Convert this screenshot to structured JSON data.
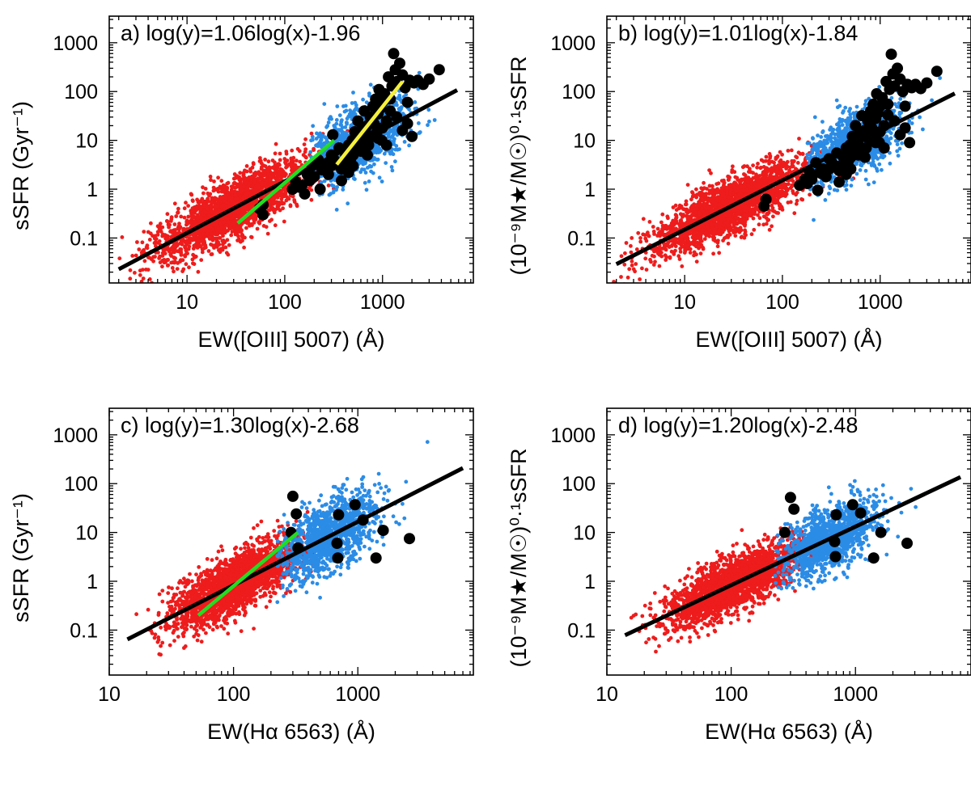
{
  "colors": {
    "red_points": "#ee1c1c",
    "blue_points": "#2b8ce6",
    "black_points": "#000000",
    "fit_line": "#000000",
    "green_line": "#22dd22",
    "yellow_line": "#f5f03c"
  },
  "chart_data": [
    {
      "type": "scatter",
      "panel": "a",
      "title": "a) log(y)=1.06log(x)-1.96",
      "xlabel": "EW([OIII] 5007) (Å)",
      "ylabel": "sSFR (Gyr⁻¹)",
      "xscale": "log",
      "yscale": "log",
      "xlim": [
        1.6,
        8500
      ],
      "ylim": [
        0.012,
        3500
      ],
      "xticks": [
        10,
        100,
        1000
      ],
      "xtick_labels": [
        "10",
        "100",
        "1000"
      ],
      "yticks": [
        0.1,
        1,
        10,
        100,
        1000
      ],
      "ytick_labels": [
        "0.1",
        "1",
        "10",
        "100",
        "1000"
      ],
      "fit": {
        "slope": 1.06,
        "intercept": -1.96,
        "x_range": [
          2,
          5800
        ]
      },
      "green_line": {
        "x": [
          33,
          320
        ],
        "y": [
          0.2,
          10
        ]
      },
      "yellow_line": {
        "x": [
          340,
          1600
        ],
        "y": [
          3.2,
          160
        ]
      },
      "red_cloud": {
        "n": 2200,
        "xlog_center": 1.45,
        "xlog_sd": 0.38,
        "xlog_min": 0.25,
        "xlog_max": 2.75,
        "ylog_scatter": 0.3
      },
      "blue_cloud": {
        "n": 1200,
        "xlog_center": 2.72,
        "xlog_sd": 0.26,
        "xlog_min": 2.25,
        "xlog_max": 3.7,
        "ylog_scatter": 0.34
      },
      "black_points": [
        [
          55,
          0.4
        ],
        [
          60,
          0.48
        ],
        [
          60,
          0.3
        ],
        [
          130,
          1.4
        ],
        [
          150,
          1.2
        ],
        [
          170,
          2
        ],
        [
          190,
          3
        ],
        [
          200,
          1.8
        ],
        [
          220,
          4
        ],
        [
          240,
          2.5
        ],
        [
          260,
          3.2
        ],
        [
          280,
          2
        ],
        [
          300,
          5
        ],
        [
          310,
          13
        ],
        [
          320,
          4
        ],
        [
          350,
          3.5
        ],
        [
          360,
          7
        ],
        [
          380,
          2.6
        ],
        [
          400,
          3.5
        ],
        [
          420,
          5
        ],
        [
          440,
          6
        ],
        [
          450,
          8
        ],
        [
          470,
          4
        ],
        [
          490,
          10
        ],
        [
          500,
          5
        ],
        [
          520,
          15
        ],
        [
          540,
          7
        ],
        [
          560,
          25
        ],
        [
          580,
          12
        ],
        [
          600,
          9
        ],
        [
          620,
          18
        ],
        [
          650,
          40
        ],
        [
          680,
          14
        ],
        [
          700,
          20
        ],
        [
          720,
          8
        ],
        [
          750,
          30
        ],
        [
          780,
          12
        ],
        [
          800,
          50
        ],
        [
          820,
          22
        ],
        [
          850,
          70
        ],
        [
          880,
          15
        ],
        [
          900,
          35
        ],
        [
          920,
          110
        ],
        [
          950,
          45
        ],
        [
          980,
          10
        ],
        [
          1000,
          60
        ],
        [
          1050,
          90
        ],
        [
          1100,
          25
        ],
        [
          1150,
          200
        ],
        [
          1200,
          70
        ],
        [
          1250,
          130
        ],
        [
          1300,
          600
        ],
        [
          1350,
          280
        ],
        [
          1400,
          160
        ],
        [
          1500,
          380
        ],
        [
          1600,
          220
        ],
        [
          1700,
          120
        ],
        [
          1800,
          60
        ],
        [
          1900,
          170
        ],
        [
          2000,
          12
        ],
        [
          2100,
          150
        ],
        [
          2300,
          170
        ],
        [
          2600,
          140
        ],
        [
          3000,
          180
        ],
        [
          3800,
          280
        ],
        [
          800,
          12
        ],
        [
          700,
          5
        ],
        [
          600,
          6
        ],
        [
          500,
          3
        ],
        [
          450,
          2.2
        ],
        [
          380,
          1.5
        ],
        [
          300,
          3
        ],
        [
          250,
          2.5
        ],
        [
          230,
          1
        ],
        [
          180,
          1.5
        ],
        [
          160,
          0.8
        ],
        [
          140,
          1.1
        ],
        [
          120,
          1
        ],
        [
          1100,
          8
        ],
        [
          1000,
          18
        ],
        [
          900,
          11
        ],
        [
          1200,
          40
        ],
        [
          1400,
          30
        ],
        [
          1600,
          16
        ],
        [
          1800,
          22
        ]
      ]
    },
    {
      "type": "scatter",
      "panel": "b",
      "title": "b) log(y)=1.01log(x)-1.84",
      "xlabel": "EW([OIII] 5007) (Å)",
      "ylabel": "(10⁻⁹M★/M☉)⁰·¹sSFR",
      "xscale": "log",
      "yscale": "log",
      "xlim": [
        1.6,
        8500
      ],
      "ylim": [
        0.012,
        3500
      ],
      "xticks": [
        10,
        100,
        1000
      ],
      "xtick_labels": [
        "10",
        "100",
        "1000"
      ],
      "yticks": [
        0.1,
        1,
        10,
        100,
        1000
      ],
      "ytick_labels": [
        "0.1",
        "1",
        "10",
        "100",
        "1000"
      ],
      "fit": {
        "slope": 1.01,
        "intercept": -1.84,
        "x_range": [
          2,
          5800
        ]
      },
      "red_cloud": {
        "n": 2200,
        "xlog_center": 1.45,
        "xlog_sd": 0.38,
        "xlog_min": 0.25,
        "xlog_max": 2.75,
        "ylog_scatter": 0.28
      },
      "blue_cloud": {
        "n": 1200,
        "xlog_center": 2.72,
        "xlog_sd": 0.26,
        "xlog_min": 2.25,
        "xlog_max": 3.7,
        "ylog_scatter": 0.32
      },
      "black_points": [
        [
          65,
          0.45
        ],
        [
          68,
          0.62
        ],
        [
          150,
          1.2
        ],
        [
          170,
          1.6
        ],
        [
          190,
          2.2
        ],
        [
          200,
          1.6
        ],
        [
          220,
          3.5
        ],
        [
          240,
          2.2
        ],
        [
          260,
          2.6
        ],
        [
          280,
          1.8
        ],
        [
          300,
          4.2
        ],
        [
          320,
          3.5
        ],
        [
          350,
          3
        ],
        [
          360,
          5.5
        ],
        [
          380,
          2.4
        ],
        [
          400,
          3
        ],
        [
          420,
          4.5
        ],
        [
          440,
          5
        ],
        [
          450,
          7
        ],
        [
          470,
          3.6
        ],
        [
          490,
          8
        ],
        [
          500,
          4.5
        ],
        [
          520,
          12
        ],
        [
          540,
          6
        ],
        [
          560,
          20
        ],
        [
          580,
          10
        ],
        [
          600,
          8
        ],
        [
          620,
          15
        ],
        [
          650,
          32
        ],
        [
          680,
          12
        ],
        [
          700,
          16
        ],
        [
          720,
          7
        ],
        [
          750,
          25
        ],
        [
          780,
          10
        ],
        [
          800,
          40
        ],
        [
          820,
          18
        ],
        [
          850,
          55
        ],
        [
          880,
          13
        ],
        [
          900,
          28
        ],
        [
          920,
          90
        ],
        [
          950,
          36
        ],
        [
          980,
          9
        ],
        [
          1000,
          50
        ],
        [
          1050,
          75
        ],
        [
          1100,
          20
        ],
        [
          1150,
          160
        ],
        [
          1200,
          55
        ],
        [
          1250,
          110
        ],
        [
          1300,
          580
        ],
        [
          1350,
          230
        ],
        [
          1400,
          130
        ],
        [
          1500,
          300
        ],
        [
          1600,
          180
        ],
        [
          1700,
          100
        ],
        [
          1800,
          50
        ],
        [
          1900,
          140
        ],
        [
          2000,
          9
        ],
        [
          2100,
          120
        ],
        [
          2300,
          140
        ],
        [
          2600,
          115
        ],
        [
          3000,
          150
        ],
        [
          3800,
          260
        ],
        [
          800,
          10
        ],
        [
          700,
          4.5
        ],
        [
          600,
          5
        ],
        [
          500,
          2.6
        ],
        [
          450,
          2
        ],
        [
          380,
          1.4
        ],
        [
          300,
          2.6
        ],
        [
          250,
          2.1
        ],
        [
          230,
          0.95
        ],
        [
          180,
          1.3
        ],
        [
          1100,
          7
        ],
        [
          1000,
          15
        ],
        [
          900,
          9
        ],
        [
          1200,
          33
        ],
        [
          1400,
          25
        ],
        [
          1600,
          13
        ],
        [
          1800,
          18
        ]
      ]
    },
    {
      "type": "scatter",
      "panel": "c",
      "title": "c) log(y)=1.30log(x)-2.68",
      "xlabel": "EW(Hα 6563) (Å)",
      "ylabel": "sSFR (Gyr⁻¹)",
      "xscale": "log",
      "yscale": "log",
      "xlim": [
        10,
        8500
      ],
      "ylim": [
        0.012,
        3500
      ],
      "xticks": [
        10,
        100,
        1000
      ],
      "xtick_labels": [
        "10",
        "100",
        "1000"
      ],
      "yticks": [
        0.1,
        1,
        10,
        100,
        1000
      ],
      "ytick_labels": [
        "0.1",
        "1",
        "10",
        "100",
        "1000"
      ],
      "fit": {
        "slope": 1.3,
        "intercept": -2.68,
        "x_range": [
          14,
          7000
        ]
      },
      "green_line": {
        "x": [
          52,
          330
        ],
        "y": [
          0.2,
          10
        ]
      },
      "red_cloud": {
        "n": 2200,
        "xlog_center": 2.02,
        "xlog_sd": 0.26,
        "xlog_min": 1.15,
        "xlog_max": 2.65,
        "ylog_scatter": 0.3
      },
      "blue_cloud": {
        "n": 1200,
        "xlog_center": 2.78,
        "xlog_sd": 0.2,
        "xlog_min": 2.35,
        "xlog_max": 3.6,
        "ylog_scatter": 0.35
      },
      "black_points": [
        [
          300,
          55
        ],
        [
          320,
          24
        ],
        [
          290,
          10
        ],
        [
          330,
          4.8
        ],
        [
          700,
          23
        ],
        [
          680,
          6
        ],
        [
          690,
          3
        ],
        [
          950,
          37
        ],
        [
          1100,
          18
        ],
        [
          1400,
          3
        ],
        [
          1600,
          11
        ],
        [
          2600,
          7.5
        ]
      ]
    },
    {
      "type": "scatter",
      "panel": "d",
      "title": "d) log(y)=1.20log(x)-2.48",
      "xlabel": "EW(Hα 6563) (Å)",
      "ylabel": "(10⁻⁹M★/M☉)⁰·¹sSFR",
      "xscale": "log",
      "yscale": "log",
      "xlim": [
        10,
        8500
      ],
      "ylim": [
        0.012,
        3500
      ],
      "xticks": [
        10,
        100,
        1000
      ],
      "xtick_labels": [
        "10",
        "100",
        "1000"
      ],
      "yticks": [
        0.1,
        1,
        10,
        100,
        1000
      ],
      "ytick_labels": [
        "0.1",
        "1",
        "10",
        "100",
        "1000"
      ],
      "fit": {
        "slope": 1.2,
        "intercept": -2.48,
        "x_range": [
          14,
          7000
        ]
      },
      "red_cloud": {
        "n": 2200,
        "xlog_center": 2.02,
        "xlog_sd": 0.26,
        "xlog_min": 1.15,
        "xlog_max": 2.65,
        "ylog_scatter": 0.28
      },
      "blue_cloud": {
        "n": 1200,
        "xlog_center": 2.78,
        "xlog_sd": 0.2,
        "xlog_min": 2.35,
        "xlog_max": 3.6,
        "ylog_scatter": 0.33
      },
      "black_points": [
        [
          300,
          52
        ],
        [
          320,
          30
        ],
        [
          270,
          10
        ],
        [
          700,
          23
        ],
        [
          680,
          6.5
        ],
        [
          690,
          3.2
        ],
        [
          950,
          37
        ],
        [
          1100,
          25
        ],
        [
          1400,
          3
        ],
        [
          1600,
          10
        ],
        [
          2600,
          6
        ]
      ]
    }
  ]
}
